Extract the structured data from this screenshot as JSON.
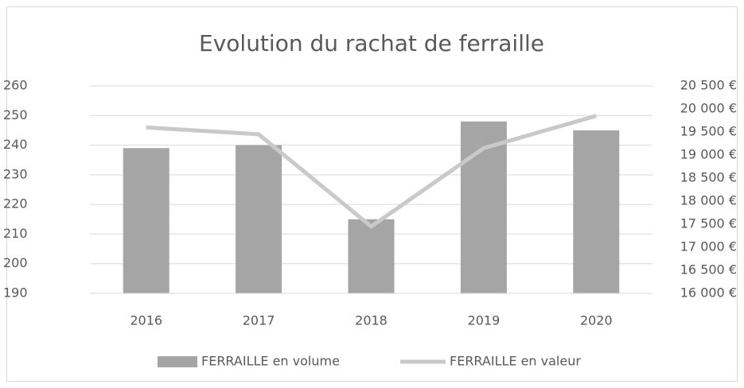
{
  "chart_data": {
    "type": "combo",
    "title": "Evolution du rachat de ferraille",
    "categories": [
      "2016",
      "2017",
      "2018",
      "2019",
      "2020"
    ],
    "series": [
      {
        "name": "FERRAILLE en volume",
        "type": "bar",
        "color": "#a5a5a5",
        "values": [
          239,
          240,
          215,
          248,
          245
        ]
      },
      {
        "name": "FERRAILLE en valeur",
        "type": "line",
        "axis": "y2",
        "color": "#c9c9c9",
        "values": [
          19600,
          19450,
          17450,
          19150,
          19850
        ]
      }
    ],
    "ylim": [
      190,
      260
    ],
    "yticks": [
      190,
      200,
      210,
      220,
      230,
      240,
      250,
      260
    ],
    "y2lim": [
      16000,
      20500
    ],
    "y2ticks": [
      {
        "value": 16000,
        "label": "16 000 €"
      },
      {
        "value": 16500,
        "label": "16 500 €"
      },
      {
        "value": 17000,
        "label": "17 000 €"
      },
      {
        "value": 17500,
        "label": "17 500 €"
      },
      {
        "value": 18000,
        "label": "18 000 €"
      },
      {
        "value": 18500,
        "label": "18 500 €"
      },
      {
        "value": 19000,
        "label": "19 000 €"
      },
      {
        "value": 19500,
        "label": "19 500 €"
      },
      {
        "value": 20000,
        "label": "20 000 €"
      },
      {
        "value": 20500,
        "label": "20 500 €"
      }
    ],
    "grid": true,
    "legend": "bottom"
  }
}
